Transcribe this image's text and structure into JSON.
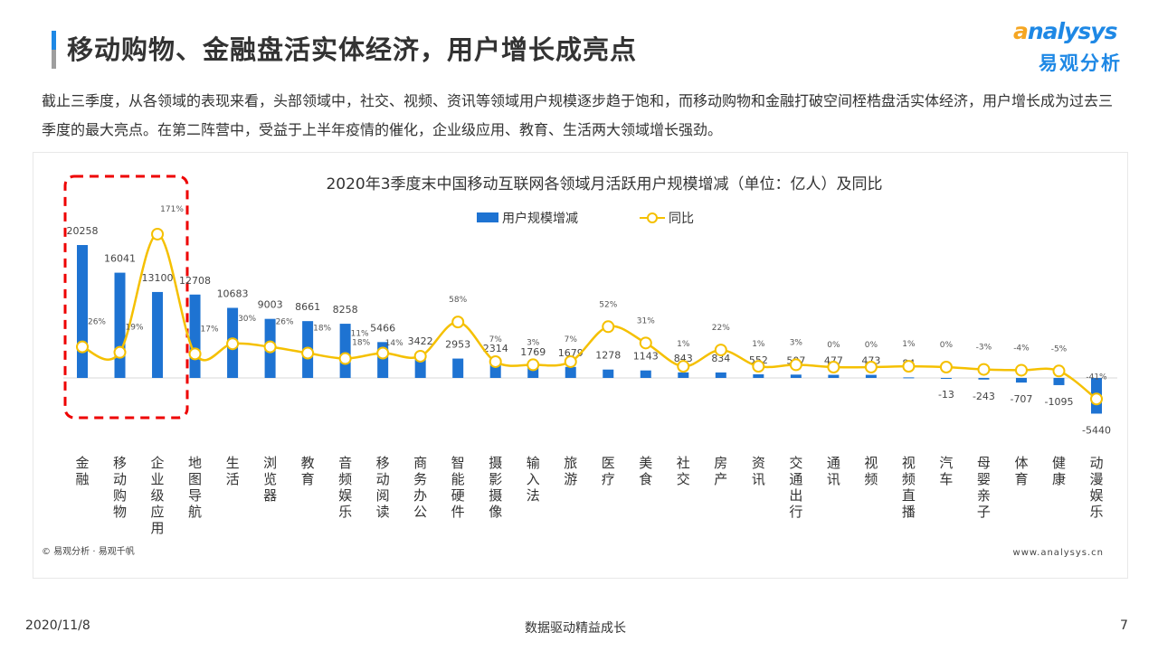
{
  "header": {
    "title": "移动购物、金融盘活实体经济，用户增长成亮点",
    "logo_en": "analysys",
    "logo_cn": "易观分析"
  },
  "description": "截止三季度，从各领域的表现来看，头部领域中，社交、视频、资讯等领域用户规模逐步趋于饱和，而移动购物和金融打破空间桎梏盘活实体经济，用户增长成为过去三季度的最大亮点。在第二阵营中，受益于上半年疫情的催化，企业级应用、教育、生活两大领域增长强劲。",
  "chart_data": {
    "type": "bar+line",
    "title": "2020年3季度末中国移动互联网各领域月活跃用户规模增减（单位：亿人）及同比",
    "legend_position": "top",
    "categories": [
      "金融",
      "移动购物",
      "企业级应用",
      "地图导航",
      "生活",
      "浏览器",
      "教育",
      "音频娱乐",
      "移动阅读",
      "商务办公",
      "智能硬件",
      "摄影摄像",
      "输入法",
      "旅游",
      "医疗",
      "美食",
      "社交",
      "房产",
      "资讯",
      "交通出行",
      "通讯",
      "视频",
      "视频直播",
      "汽车",
      "母婴亲子",
      "体育",
      "健康",
      "动漫娱乐"
    ],
    "series": [
      {
        "name": "用户规模增减",
        "type": "bar",
        "color": "#1e73d2",
        "values": [
          20258,
          16041,
          13100,
          12708,
          10683,
          9003,
          8661,
          8258,
          5466,
          3422,
          2953,
          2314,
          1769,
          1679,
          1278,
          1143,
          843,
          834,
          552,
          507,
          477,
          473,
          84,
          -13,
          -243,
          -707,
          -1095,
          -5440
        ]
      },
      {
        "name": "同比",
        "type": "line",
        "color": "#f5c000",
        "unit": "%",
        "values": [
          26,
          19,
          171,
          17,
          30,
          26,
          18,
          11,
          18,
          14,
          58,
          7,
          3,
          7,
          52,
          31,
          1,
          22,
          1,
          3,
          0,
          0,
          1,
          0,
          -3,
          -4,
          -5,
          -41
        ]
      }
    ],
    "grid": false,
    "highlight": "金融、移动购物、企业级应用 (red dashed box)"
  },
  "chart_footer": {
    "source": "© 易观分析 · 易观千帆",
    "url": "www.analysys.cn"
  },
  "footer": {
    "date": "2020/11/8",
    "slogan": "数据驱动精益成长",
    "page": "7"
  }
}
